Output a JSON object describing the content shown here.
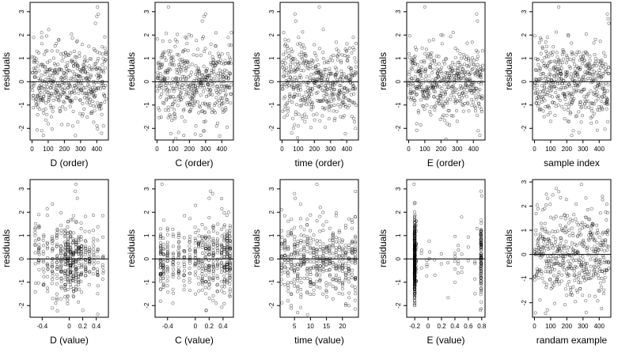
{
  "chart_data": [
    {
      "type": "scatter",
      "xlabel": "D (order)",
      "ylabel": "residuals",
      "xlim": [
        -12,
        472
      ],
      "ylim": [
        -2.5,
        3.4
      ],
      "hline": 0,
      "xticks": [
        0,
        100,
        200,
        300,
        400
      ],
      "yticks": [
        -2,
        -1,
        0,
        1,
        2,
        3
      ],
      "points": {
        "kind": "index",
        "n": 460,
        "seed": 11,
        "sd": 0.82,
        "outliers": [
          [
            10,
            1.9
          ],
          [
            60,
            2.1
          ],
          [
            100,
            -1.8
          ],
          [
            280,
            1.75
          ],
          [
            310,
            1.6
          ],
          [
            392,
            2.5
          ],
          [
            400,
            2.8
          ],
          [
            405,
            3.2
          ],
          [
            410,
            2.9
          ],
          [
            70,
            -2.3
          ],
          [
            60,
            -2.1
          ],
          [
            120,
            -1.5
          ]
        ]
      }
    },
    {
      "type": "scatter",
      "xlabel": "C (order)",
      "ylabel": "residuals",
      "xlim": [
        -12,
        472
      ],
      "ylim": [
        -2.5,
        3.4
      ],
      "hline": 0,
      "xticks": [
        0,
        100,
        200,
        300,
        400
      ],
      "yticks": [
        -2,
        -1,
        0,
        1,
        2,
        3
      ],
      "points": {
        "kind": "index",
        "n": 460,
        "seed": 22,
        "sd": 0.82,
        "outliers": [
          [
            70,
            3.2
          ],
          [
            290,
            2.8
          ],
          [
            300,
            2.9
          ],
          [
            280,
            2.6
          ],
          [
            270,
            -2.3
          ],
          [
            290,
            -2.1
          ],
          [
            240,
            -1.9
          ],
          [
            300,
            -1.7
          ],
          [
            440,
            1.9
          ],
          [
            460,
            2.1
          ]
        ]
      }
    },
    {
      "type": "scatter",
      "xlabel": "time (order)",
      "ylabel": "residuals",
      "xlim": [
        -12,
        472
      ],
      "ylim": [
        -2.5,
        3.4
      ],
      "hline": 0,
      "xticks": [
        0,
        100,
        200,
        300,
        400
      ],
      "yticks": [
        -2,
        -1,
        0,
        1,
        2,
        3
      ],
      "points": {
        "kind": "index",
        "n": 460,
        "seed": 33,
        "sd": 0.82,
        "outliers": [
          [
            10,
            2.1
          ],
          [
            20,
            1.8
          ],
          [
            80,
            2.9
          ],
          [
            85,
            2.6
          ],
          [
            230,
            3.2
          ],
          [
            60,
            -2.2
          ],
          [
            70,
            -2.0
          ],
          [
            100,
            -1.9
          ],
          [
            440,
            1.9
          ]
        ]
      }
    },
    {
      "type": "scatter",
      "xlabel": "E (order)",
      "ylabel": "residuals",
      "xlim": [
        -12,
        472
      ],
      "ylim": [
        -2.5,
        3.4
      ],
      "hline": 0,
      "xticks": [
        0,
        100,
        200,
        300,
        400
      ],
      "yticks": [
        -2,
        -1,
        0,
        1,
        2,
        3
      ],
      "points": {
        "kind": "index",
        "n": 460,
        "seed": 44,
        "sd": 0.82,
        "outliers": [
          [
            100,
            3.2
          ],
          [
            200,
            2.0
          ],
          [
            420,
            2.9
          ],
          [
            425,
            2.6
          ],
          [
            440,
            -2.3
          ],
          [
            430,
            -2.1
          ],
          [
            50,
            -1.8
          ],
          [
            300,
            -1.7
          ]
        ]
      }
    },
    {
      "type": "scatter",
      "xlabel": "sample index",
      "ylabel": "residuals",
      "xlim": [
        -12,
        472
      ],
      "ylim": [
        -2.5,
        3.4
      ],
      "hline": 0,
      "xticks": [
        0,
        100,
        200,
        300,
        400
      ],
      "yticks": [
        -2,
        -1,
        0,
        1,
        2,
        3
      ],
      "points": {
        "kind": "index",
        "n": 460,
        "seed": 55,
        "sd": 0.82,
        "outliers": [
          [
            150,
            3.2
          ],
          [
            450,
            2.9
          ],
          [
            455,
            2.7
          ],
          [
            460,
            2.5
          ],
          [
            230,
            -2.3
          ],
          [
            240,
            -2.1
          ],
          [
            100,
            -1.7
          ],
          [
            60,
            -1.5
          ],
          [
            80,
            1.9
          ]
        ]
      }
    },
    {
      "type": "scatter",
      "xlabel": "D (value)",
      "ylabel": "residuals",
      "xlim": [
        -0.58,
        0.58
      ],
      "ylim": [
        -2.5,
        3.4
      ],
      "hline": 0,
      "xticks": [
        -0.4,
        0.0,
        0.2,
        0.4
      ],
      "yticks": [
        -2,
        -1,
        0,
        1,
        2,
        3
      ],
      "points": {
        "kind": "discrete",
        "seed": 66,
        "sd": 0.82,
        "jitter": 0.006,
        "levels": [
          [
            -0.5,
            12
          ],
          [
            -0.45,
            18
          ],
          [
            -0.38,
            14
          ],
          [
            -0.32,
            16
          ],
          [
            -0.25,
            22
          ],
          [
            -0.18,
            26
          ],
          [
            -0.12,
            30
          ],
          [
            -0.06,
            36
          ],
          [
            -0.02,
            44
          ],
          [
            0.02,
            40
          ],
          [
            0.06,
            34
          ],
          [
            0.1,
            30
          ],
          [
            0.14,
            28
          ],
          [
            0.18,
            24
          ],
          [
            0.24,
            22
          ],
          [
            0.3,
            18
          ],
          [
            0.36,
            14
          ],
          [
            0.42,
            16
          ],
          [
            0.5,
            10
          ]
        ],
        "outliers": [
          [
            0.1,
            3.2
          ],
          [
            0.09,
            2.9
          ],
          [
            0.12,
            2.6
          ],
          [
            -0.25,
            -2.1
          ],
          [
            -0.2,
            -1.9
          ],
          [
            0.2,
            -2.2
          ],
          [
            -0.45,
            1.9
          ]
        ]
      }
    },
    {
      "type": "scatter",
      "xlabel": "C (value)",
      "ylabel": "residuals",
      "xlim": [
        -0.58,
        0.55
      ],
      "ylim": [
        -2.5,
        3.4
      ],
      "hline": 0,
      "xticks": [
        -0.4,
        0.0,
        0.2,
        0.4
      ],
      "yticks": [
        -2,
        -1,
        0,
        1,
        2,
        3
      ],
      "points": {
        "kind": "discrete",
        "seed": 77,
        "sd": 0.82,
        "jitter": 0.005,
        "levels": [
          [
            -0.5,
            36
          ],
          [
            -0.46,
            26
          ],
          [
            -0.4,
            24
          ],
          [
            -0.32,
            20
          ],
          [
            -0.24,
            22
          ],
          [
            -0.16,
            18
          ],
          [
            -0.08,
            20
          ],
          [
            0.0,
            22
          ],
          [
            0.05,
            18
          ],
          [
            0.1,
            22
          ],
          [
            0.15,
            28
          ],
          [
            0.2,
            32
          ],
          [
            0.26,
            30
          ],
          [
            0.32,
            22
          ],
          [
            0.38,
            24
          ],
          [
            0.42,
            30
          ],
          [
            0.46,
            40
          ],
          [
            0.5,
            44
          ]
        ],
        "outliers": [
          [
            -0.48,
            3.2
          ],
          [
            0.22,
            2.9
          ],
          [
            0.25,
            2.8
          ],
          [
            0.2,
            2.6
          ],
          [
            0.16,
            -2.2
          ],
          [
            0.3,
            -1.9
          ],
          [
            0.48,
            2.0
          ]
        ]
      }
    },
    {
      "type": "scatter",
      "xlabel": "time (value)",
      "ylabel": "residuals",
      "xlim": [
        0.5,
        25
      ],
      "ylim": [
        -2.5,
        3.4
      ],
      "hline": 0,
      "xticks": [
        5,
        10,
        15,
        20
      ],
      "yticks": [
        -2,
        -1,
        0,
        1,
        2,
        3
      ],
      "points": {
        "kind": "discrete",
        "seed": 88,
        "sd": 0.82,
        "jitter": 0.08,
        "levels": [
          [
            1,
            18
          ],
          [
            2,
            18
          ],
          [
            3,
            20
          ],
          [
            4,
            18
          ],
          [
            5,
            20
          ],
          [
            6,
            18
          ],
          [
            7,
            20
          ],
          [
            8,
            18
          ],
          [
            9,
            20
          ],
          [
            10,
            20
          ],
          [
            11,
            18
          ],
          [
            12,
            20
          ],
          [
            13,
            18
          ],
          [
            14,
            20
          ],
          [
            15,
            18
          ],
          [
            16,
            20
          ],
          [
            17,
            18
          ],
          [
            18,
            20
          ],
          [
            19,
            18
          ],
          [
            20,
            20
          ],
          [
            21,
            18
          ],
          [
            22,
            20
          ],
          [
            23,
            18
          ],
          [
            24,
            28
          ]
        ],
        "outliers": [
          [
            12,
            3.2
          ],
          [
            5,
            2.8
          ],
          [
            5.2,
            2.6
          ],
          [
            6,
            -2.3
          ],
          [
            4,
            -2.0
          ],
          [
            1,
            2.1
          ],
          [
            24,
            1.8
          ]
        ]
      }
    },
    {
      "type": "scatter",
      "xlabel": "E (value)",
      "ylabel": "residuals",
      "xlim": [
        -0.32,
        0.85
      ],
      "ylim": [
        -2.5,
        3.4
      ],
      "hline": 0,
      "xticks": [
        -0.2,
        0.0,
        0.2,
        0.4,
        0.6,
        0.8
      ],
      "yticks": [
        -2,
        -1,
        0,
        1,
        2,
        3
      ],
      "points": {
        "kind": "discrete",
        "seed": 99,
        "sd": 0.82,
        "jitter": 0.004,
        "levels": [
          [
            -0.2,
            300
          ],
          [
            -0.18,
            20
          ],
          [
            -0.1,
            3
          ],
          [
            -0.02,
            4
          ],
          [
            0.02,
            3
          ],
          [
            0.1,
            2
          ],
          [
            0.2,
            2
          ],
          [
            0.3,
            2
          ],
          [
            0.4,
            6
          ],
          [
            0.45,
            5
          ],
          [
            0.5,
            3
          ],
          [
            0.6,
            3
          ],
          [
            0.7,
            4
          ],
          [
            0.79,
            90
          ]
        ],
        "outliers": [
          [
            -0.21,
            3.2
          ],
          [
            0.79,
            2.9
          ],
          [
            0.8,
            2.7
          ],
          [
            0.78,
            -2.2
          ],
          [
            0.5,
            1.8
          ],
          [
            -0.2,
            -2.0
          ],
          [
            0.73,
            1.3
          ]
        ]
      }
    },
    {
      "type": "scatter",
      "xlabel": "randam example",
      "ylabel": "residuals",
      "xlim": [
        -12,
        472
      ],
      "ylim": [
        -2.6,
        3.1
      ],
      "hline": 0,
      "xticks": [
        0,
        100,
        200,
        300,
        400
      ],
      "yticks": [
        -2,
        -1,
        0,
        1,
        2,
        3
      ],
      "points": {
        "kind": "index",
        "n": 460,
        "seed": 111,
        "sd": 1.0,
        "outliers": [
          [
            290,
            2.9
          ],
          [
            300,
            -2.7
          ],
          [
            320,
            -2.4
          ],
          [
            150,
            2.6
          ],
          [
            80,
            -2.3
          ],
          [
            420,
            2.4
          ]
        ]
      }
    }
  ]
}
